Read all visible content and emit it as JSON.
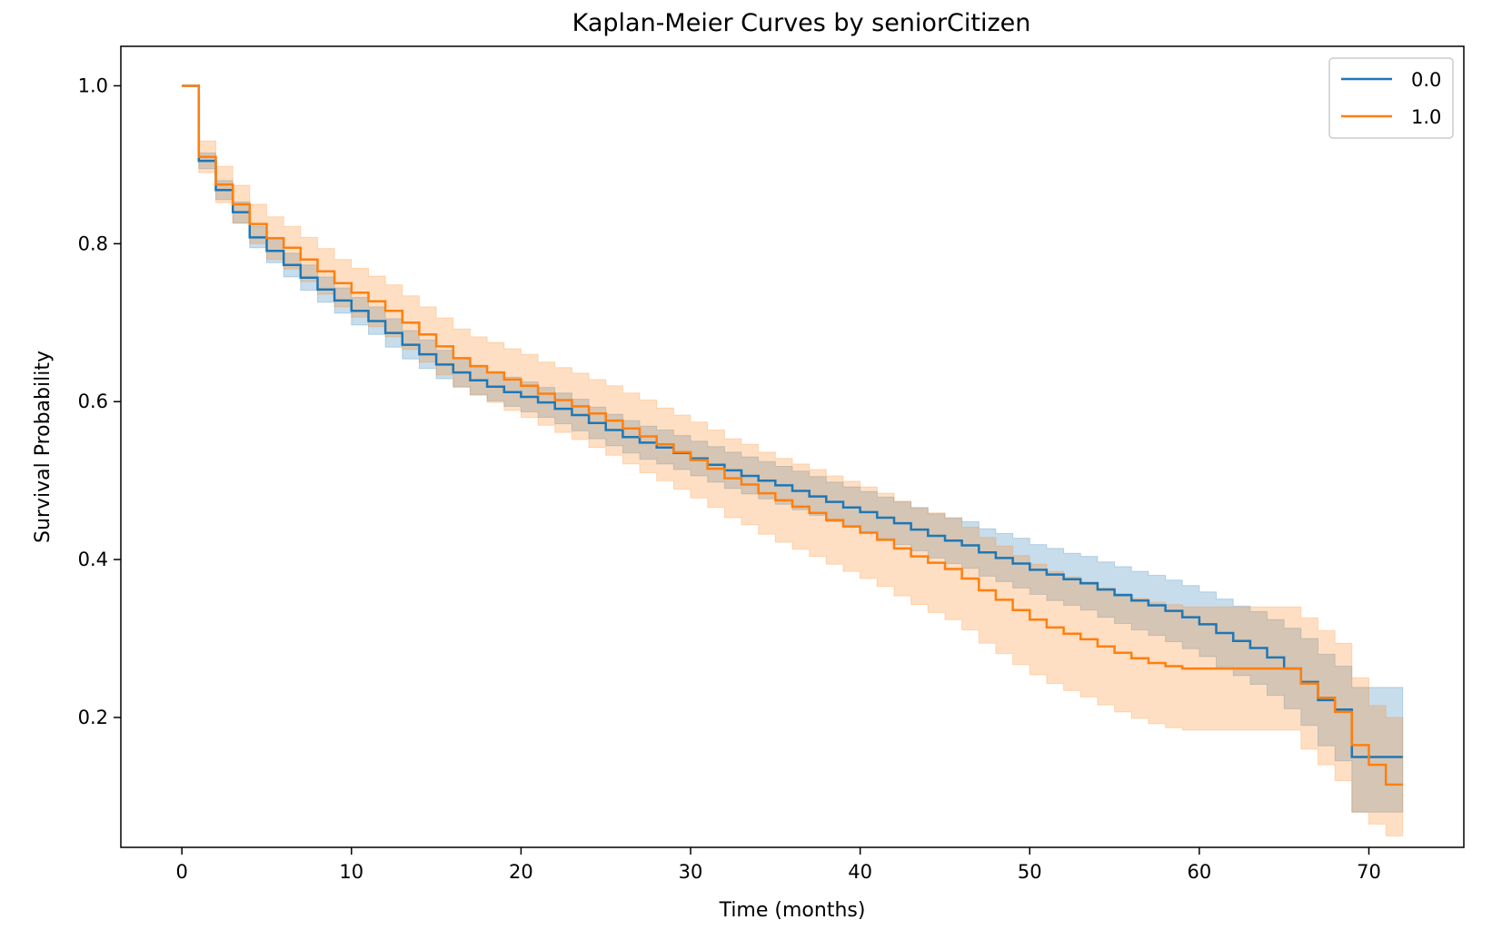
{
  "chart_data": {
    "type": "line",
    "step": true,
    "title": "Kaplan-Meier Curves by seniorCitizen",
    "xlabel": "Time (months)",
    "ylabel": "Survival Probability",
    "xlim": [
      -3.6,
      75.6
    ],
    "ylim": [
      0.0355,
      1.05
    ],
    "xticks": [
      0,
      10,
      20,
      30,
      40,
      50,
      60,
      70
    ],
    "yticks": [
      0.2,
      0.4,
      0.6,
      0.8,
      1.0
    ],
    "xtick_labels": [
      "0",
      "10",
      "20",
      "30",
      "40",
      "50",
      "60",
      "70"
    ],
    "ytick_labels": [
      "0.2",
      "0.4",
      "0.6",
      "0.8",
      "1.0"
    ],
    "grid": false,
    "legend_position": "top-right",
    "series": [
      {
        "name": "0.0",
        "color": "#1f77b4",
        "t": [
          0,
          1,
          2,
          3,
          4,
          5,
          6,
          7,
          8,
          9,
          10,
          11,
          12,
          13,
          14,
          15,
          16,
          17,
          18,
          19,
          20,
          21,
          22,
          23,
          24,
          25,
          26,
          27,
          28,
          29,
          30,
          31,
          32,
          33,
          34,
          35,
          36,
          37,
          38,
          39,
          40,
          41,
          42,
          43,
          44,
          45,
          46,
          47,
          48,
          49,
          50,
          51,
          52,
          53,
          54,
          55,
          56,
          57,
          58,
          59,
          60,
          61,
          62,
          63,
          64,
          65,
          66,
          67,
          68,
          69,
          70,
          71,
          72
        ],
        "s": [
          1.0,
          0.905,
          0.868,
          0.84,
          0.808,
          0.791,
          0.773,
          0.757,
          0.742,
          0.728,
          0.715,
          0.702,
          0.687,
          0.672,
          0.66,
          0.647,
          0.637,
          0.627,
          0.619,
          0.612,
          0.606,
          0.599,
          0.591,
          0.583,
          0.573,
          0.564,
          0.555,
          0.548,
          0.542,
          0.535,
          0.528,
          0.52,
          0.513,
          0.506,
          0.5,
          0.494,
          0.487,
          0.48,
          0.473,
          0.466,
          0.46,
          0.453,
          0.446,
          0.438,
          0.43,
          0.424,
          0.418,
          0.409,
          0.402,
          0.395,
          0.387,
          0.381,
          0.375,
          0.37,
          0.362,
          0.355,
          0.348,
          0.342,
          0.335,
          0.327,
          0.318,
          0.307,
          0.297,
          0.288,
          0.276,
          0.262,
          0.245,
          0.222,
          0.21,
          0.15,
          0.15,
          0.15,
          0.15
        ],
        "lower": [
          1.0,
          0.895,
          0.856,
          0.826,
          0.795,
          0.776,
          0.758,
          0.741,
          0.726,
          0.712,
          0.697,
          0.685,
          0.669,
          0.654,
          0.642,
          0.629,
          0.619,
          0.609,
          0.601,
          0.594,
          0.587,
          0.58,
          0.572,
          0.563,
          0.553,
          0.544,
          0.535,
          0.527,
          0.521,
          0.514,
          0.506,
          0.498,
          0.49,
          0.483,
          0.477,
          0.47,
          0.463,
          0.456,
          0.448,
          0.441,
          0.434,
          0.427,
          0.419,
          0.411,
          0.402,
          0.395,
          0.389,
          0.379,
          0.372,
          0.364,
          0.356,
          0.348,
          0.342,
          0.336,
          0.327,
          0.319,
          0.311,
          0.304,
          0.296,
          0.287,
          0.277,
          0.264,
          0.253,
          0.242,
          0.228,
          0.211,
          0.19,
          0.164,
          0.145,
          0.08,
          0.08,
          0.08,
          0.08
        ],
        "upper": [
          1.0,
          0.915,
          0.88,
          0.853,
          0.822,
          0.806,
          0.788,
          0.773,
          0.758,
          0.744,
          0.732,
          0.72,
          0.705,
          0.69,
          0.678,
          0.665,
          0.656,
          0.646,
          0.638,
          0.631,
          0.625,
          0.618,
          0.611,
          0.603,
          0.593,
          0.584,
          0.576,
          0.569,
          0.564,
          0.557,
          0.55,
          0.543,
          0.536,
          0.53,
          0.524,
          0.518,
          0.512,
          0.505,
          0.498,
          0.492,
          0.486,
          0.479,
          0.473,
          0.466,
          0.458,
          0.453,
          0.448,
          0.439,
          0.433,
          0.427,
          0.419,
          0.414,
          0.408,
          0.404,
          0.397,
          0.391,
          0.385,
          0.38,
          0.374,
          0.367,
          0.359,
          0.35,
          0.341,
          0.334,
          0.324,
          0.313,
          0.3,
          0.28,
          0.265,
          0.238,
          0.238,
          0.238,
          0.238
        ]
      },
      {
        "name": "1.0",
        "color": "#ff7f0e",
        "t": [
          0,
          1,
          2,
          3,
          4,
          5,
          6,
          7,
          8,
          9,
          10,
          11,
          12,
          13,
          14,
          15,
          16,
          17,
          18,
          19,
          20,
          21,
          22,
          23,
          24,
          25,
          26,
          27,
          28,
          29,
          30,
          31,
          32,
          33,
          34,
          35,
          36,
          37,
          38,
          39,
          40,
          41,
          42,
          43,
          44,
          45,
          46,
          47,
          48,
          49,
          50,
          51,
          52,
          53,
          54,
          55,
          56,
          57,
          58,
          59,
          60,
          61,
          62,
          63,
          64,
          65,
          66,
          67,
          68,
          69,
          70,
          71,
          72
        ],
        "s": [
          1.0,
          0.91,
          0.875,
          0.85,
          0.825,
          0.807,
          0.795,
          0.78,
          0.765,
          0.75,
          0.738,
          0.727,
          0.715,
          0.7,
          0.685,
          0.67,
          0.655,
          0.645,
          0.637,
          0.628,
          0.62,
          0.61,
          0.602,
          0.594,
          0.585,
          0.576,
          0.566,
          0.556,
          0.546,
          0.536,
          0.526,
          0.515,
          0.503,
          0.495,
          0.484,
          0.475,
          0.467,
          0.459,
          0.45,
          0.442,
          0.434,
          0.425,
          0.414,
          0.404,
          0.396,
          0.388,
          0.376,
          0.361,
          0.349,
          0.336,
          0.324,
          0.314,
          0.306,
          0.299,
          0.29,
          0.282,
          0.275,
          0.269,
          0.265,
          0.262,
          0.262,
          0.262,
          0.262,
          0.262,
          0.262,
          0.262,
          0.243,
          0.225,
          0.207,
          0.165,
          0.14,
          0.115,
          0.115
        ],
        "lower": [
          1.0,
          0.89,
          0.852,
          0.826,
          0.8,
          0.78,
          0.768,
          0.752,
          0.736,
          0.72,
          0.707,
          0.695,
          0.682,
          0.666,
          0.65,
          0.634,
          0.618,
          0.608,
          0.599,
          0.589,
          0.58,
          0.57,
          0.561,
          0.552,
          0.542,
          0.532,
          0.521,
          0.51,
          0.5,
          0.489,
          0.478,
          0.466,
          0.453,
          0.444,
          0.432,
          0.422,
          0.413,
          0.404,
          0.394,
          0.385,
          0.376,
          0.366,
          0.354,
          0.343,
          0.333,
          0.324,
          0.311,
          0.294,
          0.281,
          0.267,
          0.254,
          0.243,
          0.234,
          0.226,
          0.216,
          0.207,
          0.199,
          0.192,
          0.187,
          0.184,
          0.184,
          0.184,
          0.184,
          0.184,
          0.184,
          0.184,
          0.16,
          0.14,
          0.12,
          0.08,
          0.065,
          0.05,
          0.05
        ],
        "upper": [
          1.0,
          0.93,
          0.898,
          0.874,
          0.85,
          0.834,
          0.822,
          0.808,
          0.794,
          0.78,
          0.769,
          0.759,
          0.748,
          0.734,
          0.72,
          0.706,
          0.692,
          0.682,
          0.675,
          0.667,
          0.66,
          0.65,
          0.643,
          0.636,
          0.628,
          0.62,
          0.611,
          0.602,
          0.592,
          0.583,
          0.574,
          0.564,
          0.553,
          0.546,
          0.536,
          0.528,
          0.521,
          0.514,
          0.506,
          0.499,
          0.492,
          0.484,
          0.474,
          0.465,
          0.459,
          0.452,
          0.441,
          0.428,
          0.417,
          0.405,
          0.394,
          0.385,
          0.378,
          0.372,
          0.364,
          0.357,
          0.351,
          0.346,
          0.343,
          0.34,
          0.34,
          0.34,
          0.34,
          0.34,
          0.34,
          0.34,
          0.326,
          0.31,
          0.294,
          0.25,
          0.215,
          0.2,
          0.2
        ]
      }
    ]
  }
}
